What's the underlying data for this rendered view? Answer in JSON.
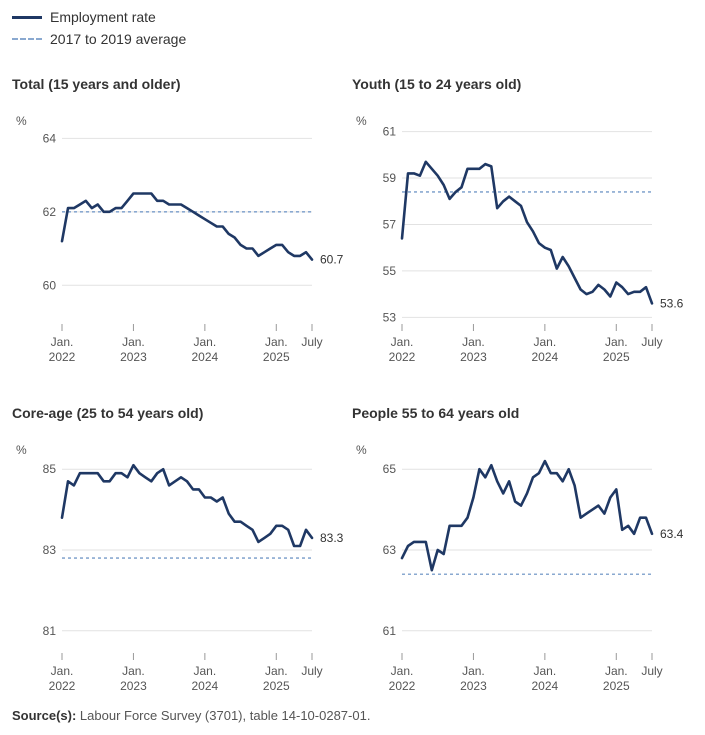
{
  "legend": {
    "employment": "Employment rate",
    "average": "2017 to 2019 average"
  },
  "source": {
    "label": "Source(s):",
    "text": "Labour Force Survey (3701), table 14-10-0287-01."
  },
  "colors": {
    "series": "#1f3864",
    "average": "#8aa9d0",
    "grid": "#e2e2e2"
  },
  "chart_data": [
    {
      "type": "line",
      "title": "Total (15 years and older)",
      "ylabel": "%",
      "ylim": [
        59,
        64.5
      ],
      "yticks": [
        60,
        62,
        64
      ],
      "xticks": [
        {
          "i": 0,
          "l1": "Jan.",
          "l2": "2022"
        },
        {
          "i": 12,
          "l1": "Jan.",
          "l2": "2023"
        },
        {
          "i": 24,
          "l1": "Jan.",
          "l2": "2024"
        },
        {
          "i": 36,
          "l1": "Jan.",
          "l2": "2025"
        },
        {
          "i": 42,
          "l1": "July",
          "l2": ""
        }
      ],
      "average": 62.0,
      "end_label": "60.7",
      "series": [
        {
          "name": "Employment rate",
          "values": [
            61.2,
            62.1,
            62.1,
            62.2,
            62.3,
            62.1,
            62.2,
            62.0,
            62.0,
            62.1,
            62.1,
            62.3,
            62.5,
            62.5,
            62.5,
            62.5,
            62.3,
            62.3,
            62.2,
            62.2,
            62.2,
            62.1,
            62.0,
            61.9,
            61.8,
            61.7,
            61.6,
            61.6,
            61.4,
            61.3,
            61.1,
            61.0,
            61.0,
            60.8,
            60.9,
            61.0,
            61.1,
            61.1,
            60.9,
            60.8,
            60.8,
            60.9,
            60.7
          ]
        }
      ]
    },
    {
      "type": "line",
      "title": "Youth (15 to 24 years old)",
      "ylabel": "%",
      "ylim": [
        52.8,
        61.5
      ],
      "yticks": [
        53,
        55,
        57,
        59,
        61
      ],
      "xticks": [
        {
          "i": 0,
          "l1": "Jan.",
          "l2": "2022"
        },
        {
          "i": 12,
          "l1": "Jan.",
          "l2": "2023"
        },
        {
          "i": 24,
          "l1": "Jan.",
          "l2": "2024"
        },
        {
          "i": 36,
          "l1": "Jan.",
          "l2": "2025"
        },
        {
          "i": 42,
          "l1": "July",
          "l2": ""
        }
      ],
      "average": 58.4,
      "end_label": "53.6",
      "series": [
        {
          "name": "Employment rate",
          "values": [
            56.4,
            59.2,
            59.2,
            59.1,
            59.7,
            59.4,
            59.1,
            58.7,
            58.1,
            58.4,
            58.6,
            59.4,
            59.4,
            59.4,
            59.6,
            59.5,
            57.7,
            58.0,
            58.2,
            58.0,
            57.8,
            57.1,
            56.7,
            56.2,
            56.0,
            55.9,
            55.1,
            55.6,
            55.2,
            54.7,
            54.2,
            54.0,
            54.1,
            54.4,
            54.2,
            53.9,
            54.5,
            54.3,
            54.0,
            54.1,
            54.1,
            54.3,
            53.6
          ]
        }
      ]
    },
    {
      "type": "line",
      "title": "Core-age (25 to 54 years old)",
      "ylabel": "%",
      "ylim": [
        80.5,
        85.5
      ],
      "yticks": [
        81,
        83,
        85
      ],
      "xticks": [
        {
          "i": 0,
          "l1": "Jan.",
          "l2": "2022"
        },
        {
          "i": 12,
          "l1": "Jan.",
          "l2": "2023"
        },
        {
          "i": 24,
          "l1": "Jan.",
          "l2": "2024"
        },
        {
          "i": 36,
          "l1": "Jan.",
          "l2": "2025"
        },
        {
          "i": 42,
          "l1": "July",
          "l2": ""
        }
      ],
      "average": 82.8,
      "end_label": "83.3",
      "series": [
        {
          "name": "Employment rate",
          "values": [
            83.8,
            84.7,
            84.6,
            84.9,
            84.9,
            84.9,
            84.9,
            84.7,
            84.7,
            84.9,
            84.9,
            84.8,
            85.1,
            84.9,
            84.8,
            84.7,
            84.9,
            85.0,
            84.6,
            84.7,
            84.8,
            84.7,
            84.5,
            84.5,
            84.3,
            84.3,
            84.2,
            84.3,
            83.9,
            83.7,
            83.7,
            83.6,
            83.5,
            83.2,
            83.3,
            83.4,
            83.6,
            83.6,
            83.5,
            83.1,
            83.1,
            83.5,
            83.3
          ]
        }
      ]
    },
    {
      "type": "line",
      "title": "People 55 to 64 years old",
      "ylabel": "%",
      "ylim": [
        60.5,
        65.5
      ],
      "yticks": [
        61,
        63,
        65
      ],
      "xticks": [
        {
          "i": 0,
          "l1": "Jan.",
          "l2": "2022"
        },
        {
          "i": 12,
          "l1": "Jan.",
          "l2": "2023"
        },
        {
          "i": 24,
          "l1": "Jan.",
          "l2": "2024"
        },
        {
          "i": 36,
          "l1": "Jan.",
          "l2": "2025"
        },
        {
          "i": 42,
          "l1": "July",
          "l2": ""
        }
      ],
      "average": 62.4,
      "end_label": "63.4",
      "series": [
        {
          "name": "Employment rate",
          "values": [
            62.8,
            63.1,
            63.2,
            63.2,
            63.2,
            62.5,
            63.0,
            62.9,
            63.6,
            63.6,
            63.6,
            63.8,
            64.3,
            65.0,
            64.8,
            65.1,
            64.7,
            64.4,
            64.7,
            64.2,
            64.1,
            64.4,
            64.8,
            64.9,
            65.2,
            64.9,
            64.9,
            64.7,
            65.0,
            64.6,
            63.8,
            63.9,
            64.0,
            64.1,
            63.9,
            64.3,
            64.5,
            63.5,
            63.6,
            63.4,
            63.8,
            63.8,
            63.4
          ]
        }
      ]
    }
  ]
}
